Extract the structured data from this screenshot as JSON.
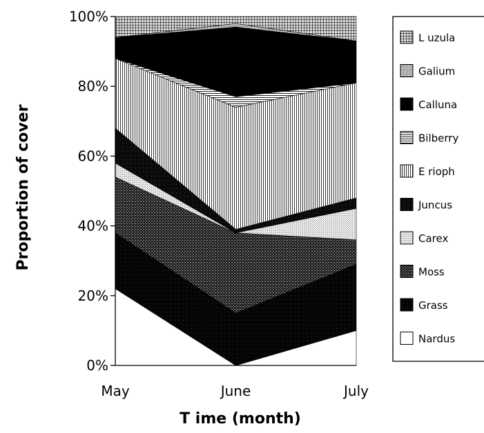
{
  "chart_data": {
    "type": "area",
    "stacked": true,
    "percent": true,
    "title": "",
    "xlabel": "T ime (month)",
    "ylabel": "Proportion of cover",
    "x": [
      "May",
      "June",
      "July"
    ],
    "ylim": [
      0,
      100
    ],
    "yticks": [
      "0%",
      "20%",
      "40%",
      "60%",
      "80%",
      "100%"
    ],
    "ytick_values": [
      0,
      20,
      40,
      60,
      80,
      100
    ],
    "grid": false,
    "legend_position": "right",
    "series": [
      {
        "name": "Nardus",
        "values": [
          22,
          0,
          10
        ],
        "fill": "#ffffff"
      },
      {
        "name": "Grass",
        "values": [
          16,
          15,
          19
        ],
        "fill": "#000000"
      },
      {
        "name": "Moss",
        "values": [
          16,
          23,
          7
        ],
        "fill": "#4a4a4a"
      },
      {
        "name": "Carex",
        "values": [
          4,
          0,
          9
        ],
        "fill": "#d2d2d2"
      },
      {
        "name": "Juncus",
        "values": [
          10,
          1,
          3
        ],
        "fill": "#111111"
      },
      {
        "name": "E rioph",
        "values": [
          20,
          35,
          33
        ],
        "fill": "#b0b0b0"
      },
      {
        "name": "Bilberry",
        "values": [
          0,
          3,
          0
        ],
        "fill": "#777777"
      },
      {
        "name": "Calluna",
        "values": [
          6,
          20,
          12
        ],
        "fill": "#000000"
      },
      {
        "name": "Galium",
        "values": [
          0,
          1,
          0
        ],
        "fill": "#9a9a9a"
      },
      {
        "name": "L uzula",
        "values": [
          6,
          2,
          7
        ],
        "fill": "#8c8c8c"
      }
    ]
  }
}
